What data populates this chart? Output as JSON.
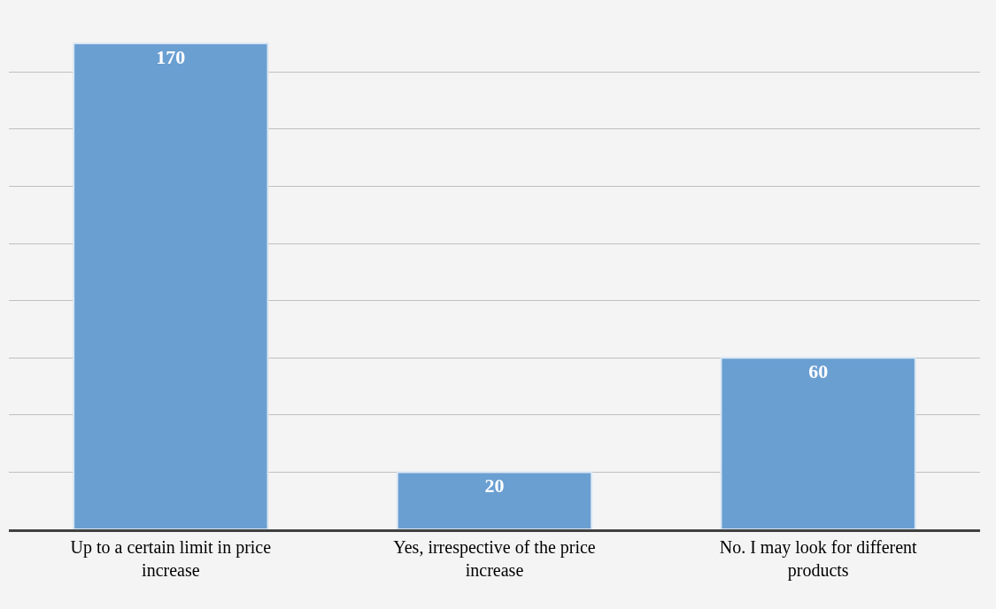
{
  "chart_data": {
    "type": "bar",
    "categories": [
      "Up to a certain limit in price increase",
      "Yes, irrespective of the price increase",
      "No. I may look for different products"
    ],
    "values": [
      170,
      20,
      60
    ],
    "color": "#6a9fd2",
    "data_labels": true,
    "yticks": [
      {
        "value": 0,
        "label": null
      },
      {
        "value": 20,
        "label": null
      },
      {
        "value": 40,
        "label": null
      },
      {
        "value": 60,
        "label": null
      },
      {
        "value": 80,
        "label": null
      },
      {
        "value": 100,
        "label": null
      },
      {
        "value": 120,
        "label": null
      },
      {
        "value": 140,
        "label": null
      },
      {
        "value": 160,
        "label": null
      }
    ],
    "grid": "y",
    "tick_labels": "x"
  }
}
